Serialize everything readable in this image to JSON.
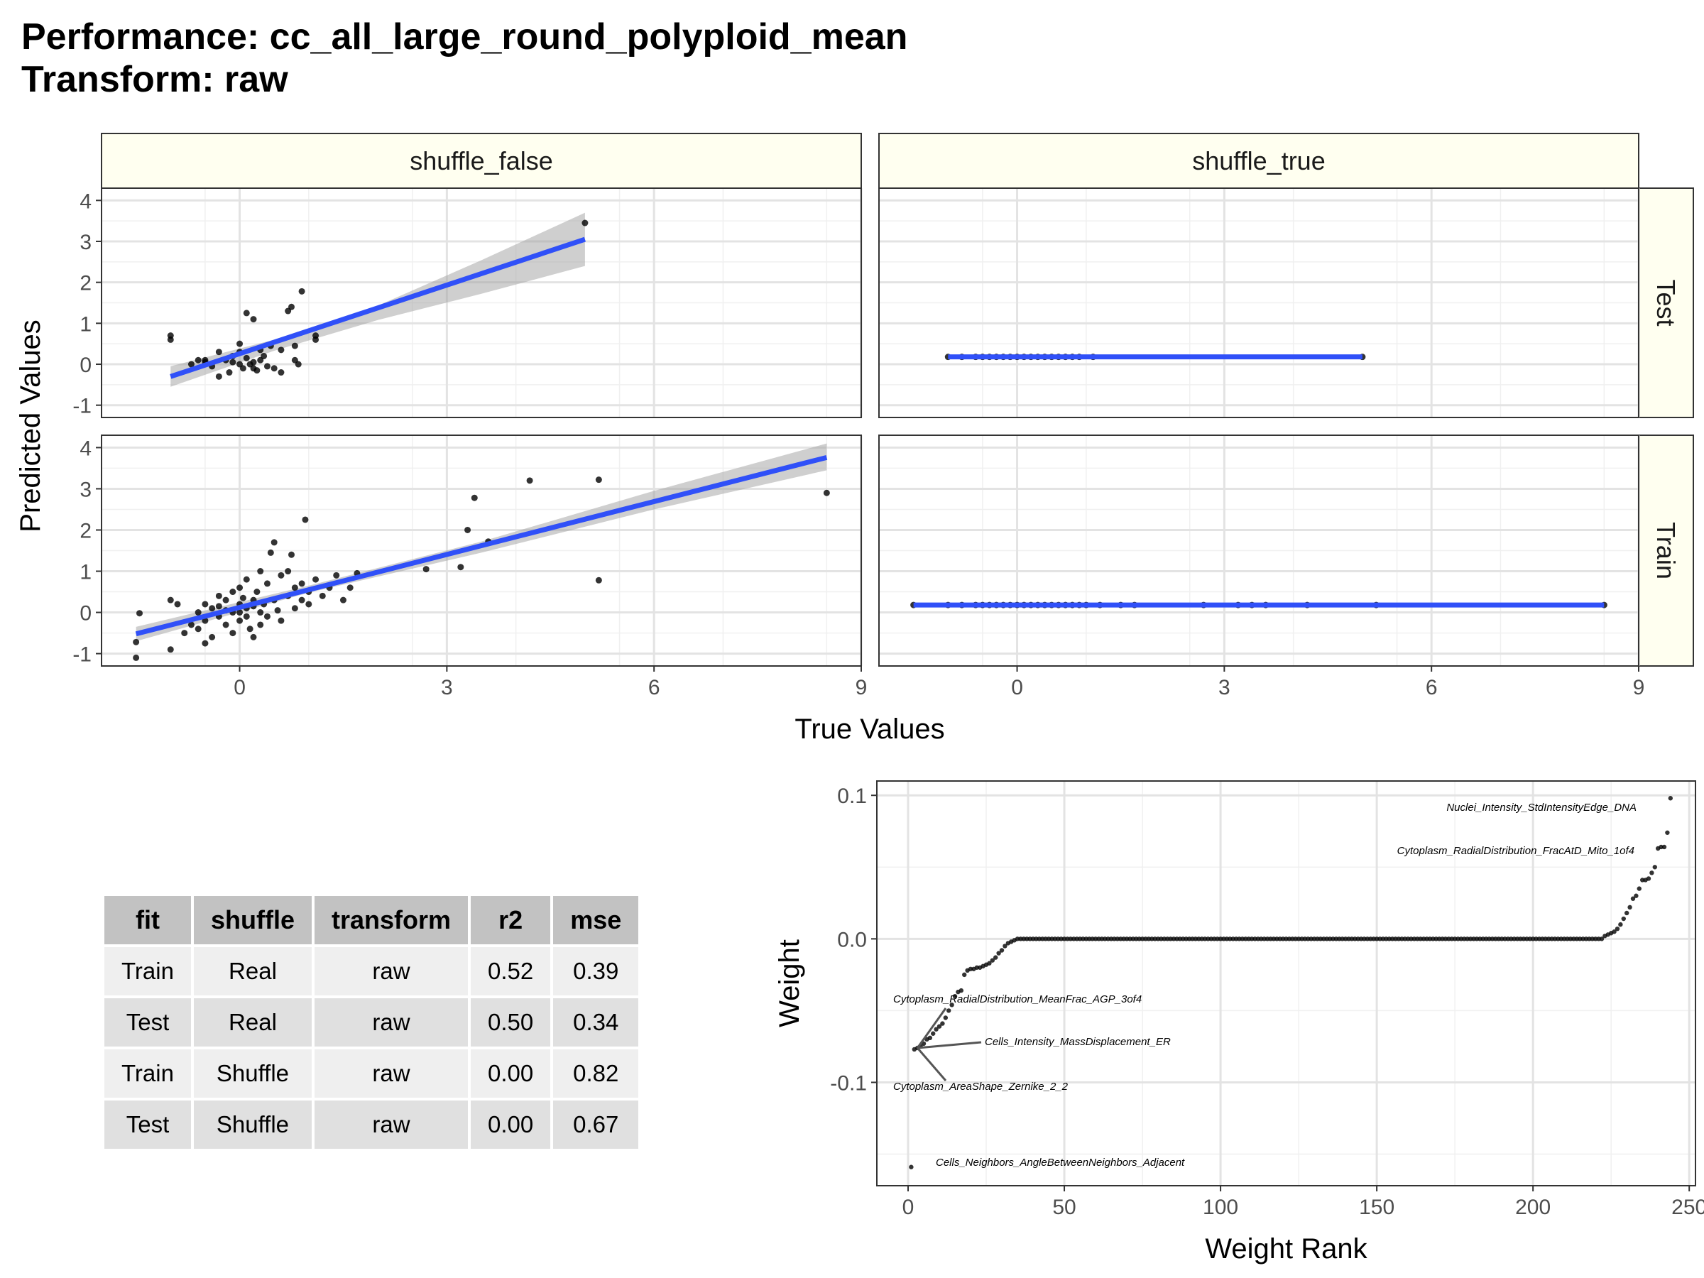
{
  "title": {
    "line1": "Performance: cc_all_large_round_polyploid_mean",
    "line2": "Transform: raw"
  },
  "chart_data": [
    {
      "type": "scatter",
      "title": "",
      "xlabel": "True Values",
      "ylabel": "Predicted Values",
      "facets": {
        "columns": [
          "shuffle_false",
          "shuffle_true"
        ],
        "rows": [
          "Test",
          "Train"
        ]
      },
      "xlim": [
        -2,
        9
      ],
      "xticks": [
        0,
        3,
        6,
        9
      ],
      "ylim_by_row": {
        "Test": [
          -1.3,
          4.3
        ],
        "Train": [
          -1.3,
          4.3
        ]
      },
      "yticks": [
        -1,
        0,
        1,
        2,
        3,
        4
      ],
      "grid": true,
      "colors": {
        "points": "#000000",
        "fit_line": "#3050f8",
        "ribbon": "#a0a0a0",
        "strip_fill": "#fffff0"
      },
      "panels": [
        {
          "col": "shuffle_false",
          "row": "Test",
          "fit": {
            "x": [
              -1.0,
              5.0
            ],
            "y": [
              -0.3,
              3.05
            ]
          },
          "ribbon": {
            "x": [
              -1.0,
              0.5,
              2.0,
              3.5,
              5.0
            ],
            "lower": [
              -0.55,
              0.33,
              1.08,
              1.72,
              2.4
            ],
            "upper": [
              -0.05,
              0.6,
              1.43,
              2.54,
              3.7
            ]
          },
          "points": [
            [
              -1.0,
              0.7
            ],
            [
              -1.0,
              0.6
            ],
            [
              -0.7,
              0.0
            ],
            [
              -0.6,
              0.1
            ],
            [
              -0.5,
              0.05
            ],
            [
              -0.5,
              0.1
            ],
            [
              -0.4,
              -0.05
            ],
            [
              -0.3,
              0.3
            ],
            [
              -0.3,
              -0.3
            ],
            [
              -0.2,
              0.1
            ],
            [
              -0.15,
              -0.2
            ],
            [
              -0.1,
              0.2
            ],
            [
              -0.1,
              0.05
            ],
            [
              0.0,
              0.3
            ],
            [
              0.0,
              0.0
            ],
            [
              0.0,
              0.5
            ],
            [
              0.05,
              -0.1
            ],
            [
              0.1,
              0.15
            ],
            [
              0.1,
              1.25
            ],
            [
              0.15,
              0.0
            ],
            [
              0.2,
              1.1
            ],
            [
              0.2,
              0.05
            ],
            [
              0.25,
              -0.15
            ],
            [
              0.3,
              0.35
            ],
            [
              0.3,
              0.1
            ],
            [
              0.35,
              0.2
            ],
            [
              0.4,
              -0.05
            ],
            [
              0.5,
              -0.1
            ],
            [
              0.6,
              -0.2
            ],
            [
              0.6,
              0.35
            ],
            [
              0.7,
              1.3
            ],
            [
              0.75,
              1.4
            ],
            [
              0.8,
              0.45
            ],
            [
              0.8,
              0.1
            ],
            [
              0.85,
              0.0
            ],
            [
              0.9,
              1.78
            ],
            [
              1.1,
              0.7
            ],
            [
              1.1,
              0.6
            ],
            [
              0.2,
              -0.1
            ],
            [
              0.45,
              0.45
            ],
            [
              5.0,
              3.45
            ]
          ]
        },
        {
          "col": "shuffle_true",
          "row": "Test",
          "fit": {
            "x": [
              -1.0,
              5.0
            ],
            "y": [
              0.18,
              0.18
            ]
          },
          "ribbon": {
            "x": [
              -1.0,
              5.0
            ],
            "lower": [
              0.15,
              0.15
            ],
            "upper": [
              0.21,
              0.21
            ]
          },
          "points": [
            [
              -1.0,
              0.18
            ],
            [
              -0.8,
              0.18
            ],
            [
              -0.6,
              0.18
            ],
            [
              -0.5,
              0.18
            ],
            [
              -0.4,
              0.18
            ],
            [
              -0.3,
              0.18
            ],
            [
              -0.2,
              0.18
            ],
            [
              -0.1,
              0.18
            ],
            [
              0.0,
              0.18
            ],
            [
              0.1,
              0.18
            ],
            [
              0.2,
              0.18
            ],
            [
              0.3,
              0.18
            ],
            [
              0.4,
              0.18
            ],
            [
              0.5,
              0.18
            ],
            [
              0.6,
              0.18
            ],
            [
              0.7,
              0.18
            ],
            [
              0.8,
              0.18
            ],
            [
              0.9,
              0.18
            ],
            [
              1.1,
              0.18
            ],
            [
              5.0,
              0.18
            ]
          ]
        },
        {
          "col": "shuffle_false",
          "row": "Train",
          "fit": {
            "x": [
              -1.5,
              8.5
            ],
            "y": [
              -0.52,
              3.76
            ]
          },
          "ribbon": {
            "x": [
              -1.5,
              1.0,
              3.5,
              6.0,
              8.5
            ],
            "lower": [
              -0.7,
              0.48,
              1.45,
              2.5,
              3.45
            ],
            "upper": [
              -0.35,
              0.65,
              1.72,
              2.95,
              4.1
            ]
          },
          "points": [
            [
              -1.5,
              -0.72
            ],
            [
              -1.5,
              -1.1
            ],
            [
              -1.45,
              -0.02
            ],
            [
              -1.0,
              0.3
            ],
            [
              -1.0,
              -0.9
            ],
            [
              -0.9,
              0.2
            ],
            [
              -0.8,
              -0.5
            ],
            [
              -0.7,
              -0.3
            ],
            [
              -0.6,
              0.0
            ],
            [
              -0.6,
              -0.4
            ],
            [
              -0.5,
              0.2
            ],
            [
              -0.5,
              -0.2
            ],
            [
              -0.5,
              -0.75
            ],
            [
              -0.4,
              0.1
            ],
            [
              -0.4,
              -0.6
            ],
            [
              -0.3,
              0.4
            ],
            [
              -0.3,
              -0.1
            ],
            [
              -0.3,
              0.15
            ],
            [
              -0.2,
              0.3
            ],
            [
              -0.2,
              -0.3
            ],
            [
              -0.2,
              0.05
            ],
            [
              -0.1,
              0.5
            ],
            [
              -0.1,
              0.0
            ],
            [
              -0.1,
              -0.5
            ],
            [
              0.0,
              0.2
            ],
            [
              0.0,
              -0.2
            ],
            [
              0.0,
              0.6
            ],
            [
              0.0,
              0.0
            ],
            [
              0.05,
              0.35
            ],
            [
              0.1,
              -0.1
            ],
            [
              0.1,
              0.8
            ],
            [
              0.1,
              0.1
            ],
            [
              0.15,
              -0.4
            ],
            [
              0.2,
              0.3
            ],
            [
              0.2,
              -0.6
            ],
            [
              0.2,
              0.15
            ],
            [
              0.25,
              0.5
            ],
            [
              0.3,
              0.0
            ],
            [
              0.3,
              -0.3
            ],
            [
              0.3,
              1.0
            ],
            [
              0.35,
              0.2
            ],
            [
              0.4,
              0.7
            ],
            [
              0.4,
              -0.1
            ],
            [
              0.45,
              1.45
            ],
            [
              0.5,
              0.3
            ],
            [
              0.5,
              1.7
            ],
            [
              0.55,
              0.05
            ],
            [
              0.6,
              0.9
            ],
            [
              0.6,
              -0.2
            ],
            [
              0.7,
              1.0
            ],
            [
              0.7,
              0.4
            ],
            [
              0.75,
              1.4
            ],
            [
              0.8,
              0.6
            ],
            [
              0.8,
              0.1
            ],
            [
              0.9,
              0.7
            ],
            [
              0.9,
              0.3
            ],
            [
              0.95,
              2.25
            ],
            [
              1.0,
              0.5
            ],
            [
              1.0,
              0.2
            ],
            [
              1.1,
              0.8
            ],
            [
              1.2,
              0.4
            ],
            [
              1.3,
              0.6
            ],
            [
              1.4,
              0.9
            ],
            [
              1.5,
              0.3
            ],
            [
              1.6,
              0.6
            ],
            [
              1.7,
              0.95
            ],
            [
              2.7,
              1.05
            ],
            [
              3.2,
              1.1
            ],
            [
              3.3,
              2.0
            ],
            [
              3.4,
              2.78
            ],
            [
              3.6,
              1.72
            ],
            [
              4.2,
              3.2
            ],
            [
              5.2,
              3.22
            ],
            [
              5.2,
              0.78
            ],
            [
              8.5,
              2.9
            ]
          ]
        },
        {
          "col": "shuffle_true",
          "row": "Train",
          "fit": {
            "x": [
              -1.5,
              8.5
            ],
            "y": [
              0.18,
              0.18
            ]
          },
          "ribbon": {
            "x": [
              -1.5,
              8.5
            ],
            "lower": [
              0.16,
              0.16
            ],
            "upper": [
              0.2,
              0.2
            ]
          },
          "points": [
            [
              -1.5,
              0.18
            ],
            [
              -1.0,
              0.18
            ],
            [
              -0.8,
              0.18
            ],
            [
              -0.6,
              0.18
            ],
            [
              -0.5,
              0.18
            ],
            [
              -0.4,
              0.18
            ],
            [
              -0.3,
              0.18
            ],
            [
              -0.2,
              0.18
            ],
            [
              -0.1,
              0.18
            ],
            [
              0.0,
              0.18
            ],
            [
              0.1,
              0.18
            ],
            [
              0.2,
              0.18
            ],
            [
              0.3,
              0.18
            ],
            [
              0.4,
              0.18
            ],
            [
              0.5,
              0.18
            ],
            [
              0.6,
              0.18
            ],
            [
              0.7,
              0.18
            ],
            [
              0.8,
              0.18
            ],
            [
              0.9,
              0.18
            ],
            [
              1.0,
              0.18
            ],
            [
              1.2,
              0.18
            ],
            [
              1.5,
              0.18
            ],
            [
              1.7,
              0.18
            ],
            [
              2.7,
              0.18
            ],
            [
              3.2,
              0.18
            ],
            [
              3.4,
              0.18
            ],
            [
              3.6,
              0.18
            ],
            [
              4.2,
              0.18
            ],
            [
              5.2,
              0.18
            ],
            [
              8.5,
              0.18
            ]
          ]
        }
      ]
    },
    {
      "type": "scatter",
      "title": "",
      "xlabel": "Weight Rank",
      "ylabel": "Weight",
      "xlim": [
        -10,
        252
      ],
      "xticks": [
        0,
        50,
        100,
        150,
        200,
        250
      ],
      "ylim": [
        -0.172,
        0.11
      ],
      "yticks": [
        -0.1,
        0.0,
        0.1
      ],
      "ytick_labels": [
        "-0.1",
        "0.0",
        "0.1"
      ],
      "grid": true,
      "n_points": 244,
      "negative_weights": [
        -0.159,
        -0.077,
        -0.076,
        -0.075,
        -0.073,
        -0.07,
        -0.069,
        -0.066,
        -0.063,
        -0.061,
        -0.059,
        -0.055,
        -0.05,
        -0.046,
        -0.04,
        -0.037,
        -0.036,
        -0.025,
        -0.022,
        -0.021,
        -0.021,
        -0.02,
        -0.02,
        -0.019,
        -0.018,
        -0.017,
        -0.015,
        -0.013,
        -0.01,
        -0.008,
        -0.005,
        -0.003,
        -0.002,
        -0.001
      ],
      "positive_weights": [
        0.002,
        0.003,
        0.004,
        0.005,
        0.007,
        0.01,
        0.014,
        0.018,
        0.022,
        0.028,
        0.03,
        0.035,
        0.041,
        0.041,
        0.042,
        0.046,
        0.05,
        0.063,
        0.064,
        0.064,
        0.074,
        0.098
      ],
      "annotations": [
        {
          "text": "Nuclei_Intensity_StdIntensityEdge_DNA",
          "rank": 244
        },
        {
          "text": "Cytoplasm_RadialDistribution_FracAtD_Mito_1of4",
          "rank": 241
        },
        {
          "text": "Cytoplasm_RadialDistribution_MeanFrac_AGP_3of4",
          "rank": 3
        },
        {
          "text": "Cells_Intensity_MassDisplacement_ER",
          "rank": 3
        },
        {
          "text": "Cytoplasm_AreaShape_Zernike_2_2",
          "rank": 3
        },
        {
          "text": "Cells_Neighbors_AngleBetweenNeighbors_Adjacent",
          "rank": 1
        }
      ]
    }
  ],
  "table": {
    "headers": [
      "fit",
      "shuffle",
      "transform",
      "r2",
      "mse"
    ],
    "rows": [
      [
        "Train",
        "Real",
        "raw",
        "0.52",
        "0.39"
      ],
      [
        "Test",
        "Real",
        "raw",
        "0.50",
        "0.34"
      ],
      [
        "Train",
        "Shuffle",
        "raw",
        "0.00",
        "0.82"
      ],
      [
        "Test",
        "Shuffle",
        "raw",
        "0.00",
        "0.67"
      ]
    ]
  }
}
